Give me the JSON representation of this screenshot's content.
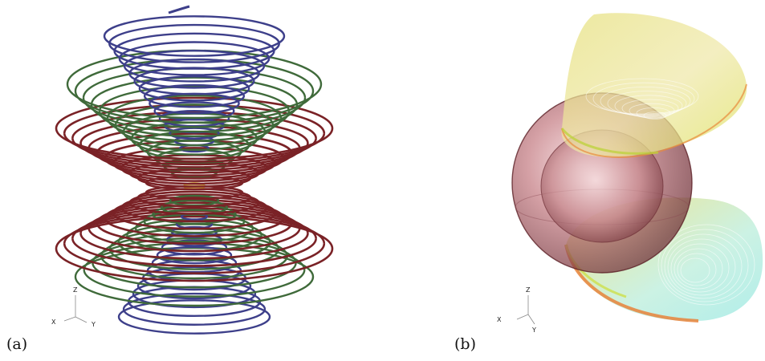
{
  "panels": [
    {
      "label": "(a)",
      "axes": {
        "z": "Z",
        "x": "X",
        "y": "Y"
      },
      "colors": {
        "blue": "#3d3f8a",
        "green": "#3f6a3a",
        "red": "#7a2226",
        "core": "#e8c020"
      }
    },
    {
      "label": "(b)",
      "axes": {
        "z": "Z",
        "x": "X",
        "y": "Y"
      },
      "colors": {
        "sphere": "#a8585e",
        "cap_top": "#e9e070",
        "cap_edge": "#e88a3a",
        "cyan": "#8fe6e0"
      }
    }
  ]
}
